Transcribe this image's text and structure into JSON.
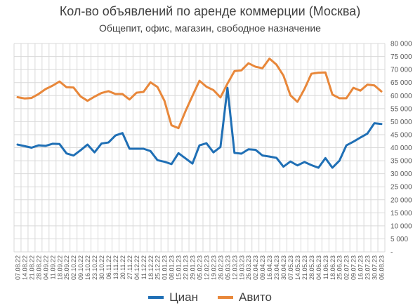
{
  "chart_data": {
    "type": "line",
    "title": "Кол-во объявлений по аренде коммерции (Москва)",
    "subtitle": "Общепит, офис, магазин, свободное назначение",
    "y_axis_side": "right",
    "ylim": [
      0,
      80000
    ],
    "y_ticks": [
      "-",
      "5 000",
      "10 000",
      "15 000",
      "20 000",
      "25 000",
      "30 000",
      "35 000",
      "40 000",
      "45 000",
      "50 000",
      "55 000",
      "60 000",
      "65 000",
      "70 000",
      "75 000",
      "80 000"
    ],
    "grid": true,
    "legend_position": "bottom",
    "x": [
      "07.08.22",
      "14.08.22",
      "21.08.22",
      "28.08.22",
      "04.09.22",
      "11.09.22",
      "18.09.22",
      "25.09.22",
      "02.10.22",
      "09.10.22",
      "16.10.22",
      "23.10.22",
      "30.10.22",
      "06.11.22",
      "13.11.22",
      "20.11.22",
      "27.11.22",
      "04.12.22",
      "11.12.22",
      "18.12.22",
      "25.12.22",
      "01.01.23",
      "08.01.23",
      "15.01.23",
      "22.01.23",
      "29.01.23",
      "05.02.23",
      "12.02.23",
      "19.02.23",
      "26.02.23",
      "05.03.23",
      "12.03.23",
      "19.03.23",
      "26.03.23",
      "02.04.23",
      "09.04.23",
      "16.04.23",
      "23.04.23",
      "30.04.23",
      "07.05.23",
      "14.05.23",
      "21.05.23",
      "28.05.23",
      "04.06.23",
      "11.06.23",
      "18.06.23",
      "25.06.23",
      "02.07.23",
      "09.07.23",
      "16.07.23",
      "23.07.23",
      "30.07.23",
      "06.08.23"
    ],
    "series": [
      {
        "name": "Циан",
        "color": "#1F6FB5",
        "values": [
          41200,
          40600,
          40000,
          40900,
          40700,
          41500,
          41400,
          37800,
          37000,
          39000,
          41200,
          38200,
          41600,
          42000,
          44700,
          45600,
          39600,
          39600,
          39600,
          38700,
          35200,
          34600,
          33700,
          37900,
          35900,
          33900,
          40900,
          41700,
          38200,
          40300,
          63000,
          38000,
          37700,
          39400,
          39200,
          37000,
          36600,
          36100,
          32700,
          34700,
          33200,
          34500,
          33300,
          32300,
          36000,
          32300,
          35000,
          40900,
          42300,
          43900,
          45400,
          49400,
          49100
        ]
      },
      {
        "name": "Авито",
        "color": "#E8873A",
        "values": [
          59400,
          58900,
          59100,
          60600,
          62500,
          63800,
          65400,
          63200,
          63100,
          59700,
          58000,
          59600,
          61000,
          61700,
          60600,
          60600,
          58500,
          61100,
          61400,
          65100,
          63300,
          58000,
          48600,
          47500,
          54000,
          59900,
          65700,
          63400,
          62100,
          59300,
          64600,
          69400,
          69700,
          72400,
          71100,
          70500,
          74200,
          71900,
          67700,
          60100,
          57600,
          62500,
          68400,
          68800,
          68900,
          60400,
          59000,
          59000,
          63000,
          61900,
          64200,
          63900,
          61600
        ]
      }
    ]
  }
}
